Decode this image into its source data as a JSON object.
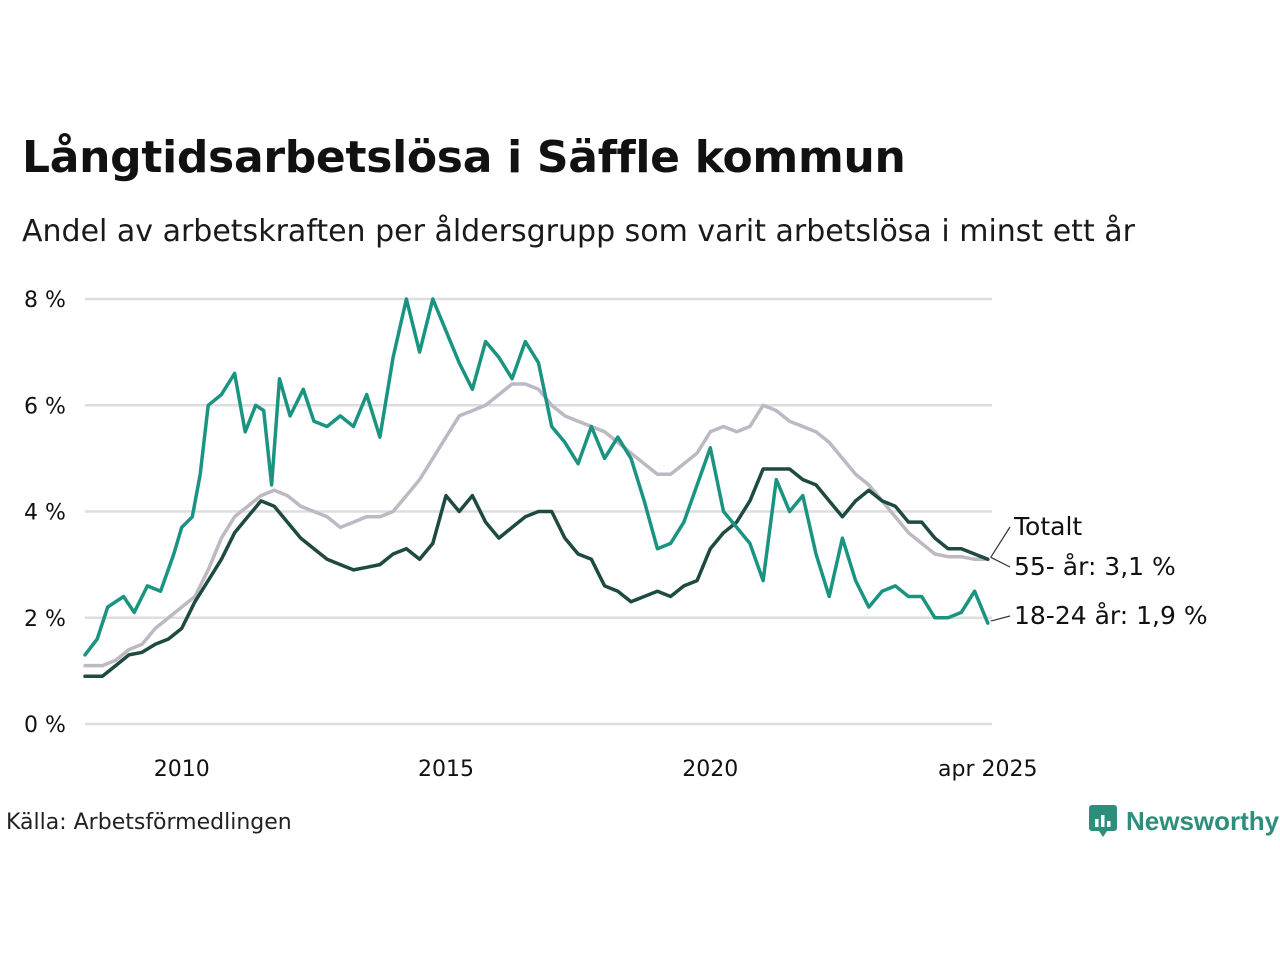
{
  "title": "Långtidsarbetslösa i Säffle kommun",
  "subtitle": "Andel av arbetskraften per åldersgrupp som varit arbetslösa i minst ett år",
  "source": "Källa: Arbetsförmedlingen",
  "brand": "Newsworthy",
  "colors": {
    "youth": "#1a9480",
    "senior": "#1f4a42",
    "total": "#bcb8c4",
    "grid": "#dddddd",
    "brand": "#2d8f7b"
  },
  "chart_data": {
    "type": "line",
    "ylim": [
      0,
      8
    ],
    "yticks": [
      0,
      2,
      4,
      6,
      8
    ],
    "ytick_labels": [
      "0 %",
      "2 %",
      "4 %",
      "6 %",
      "8 %"
    ],
    "xlim": [
      2008.17,
      2025.33
    ],
    "xticks": [
      2010,
      2015,
      2020,
      2025.25
    ],
    "xtick_labels": [
      "2010",
      "2015",
      "2020",
      "apr 2025"
    ],
    "grid": "horizontal",
    "series": [
      {
        "name": "Totalt",
        "key": "total",
        "label": "Totalt",
        "points": [
          [
            2008.17,
            1.1
          ],
          [
            2008.5,
            1.1
          ],
          [
            2008.75,
            1.2
          ],
          [
            2009,
            1.4
          ],
          [
            2009.25,
            1.5
          ],
          [
            2009.5,
            1.8
          ],
          [
            2009.75,
            2.0
          ],
          [
            2010,
            2.2
          ],
          [
            2010.25,
            2.4
          ],
          [
            2010.5,
            2.9
          ],
          [
            2010.75,
            3.5
          ],
          [
            2011,
            3.9
          ],
          [
            2011.25,
            4.1
          ],
          [
            2011.5,
            4.3
          ],
          [
            2011.75,
            4.4
          ],
          [
            2012,
            4.3
          ],
          [
            2012.25,
            4.1
          ],
          [
            2012.5,
            4.0
          ],
          [
            2012.75,
            3.9
          ],
          [
            2013,
            3.7
          ],
          [
            2013.25,
            3.8
          ],
          [
            2013.5,
            3.9
          ],
          [
            2013.75,
            3.9
          ],
          [
            2014,
            4.0
          ],
          [
            2014.25,
            4.3
          ],
          [
            2014.5,
            4.6
          ],
          [
            2014.75,
            5.0
          ],
          [
            2015,
            5.4
          ],
          [
            2015.25,
            5.8
          ],
          [
            2015.5,
            5.9
          ],
          [
            2015.75,
            6.0
          ],
          [
            2016,
            6.2
          ],
          [
            2016.25,
            6.4
          ],
          [
            2016.5,
            6.4
          ],
          [
            2016.75,
            6.3
          ],
          [
            2017,
            6.0
          ],
          [
            2017.25,
            5.8
          ],
          [
            2017.5,
            5.7
          ],
          [
            2017.75,
            5.6
          ],
          [
            2018,
            5.5
          ],
          [
            2018.25,
            5.3
          ],
          [
            2018.5,
            5.1
          ],
          [
            2018.75,
            4.9
          ],
          [
            2019,
            4.7
          ],
          [
            2019.25,
            4.7
          ],
          [
            2019.5,
            4.9
          ],
          [
            2019.75,
            5.1
          ],
          [
            2020,
            5.5
          ],
          [
            2020.25,
            5.6
          ],
          [
            2020.5,
            5.5
          ],
          [
            2020.75,
            5.6
          ],
          [
            2021,
            6.0
          ],
          [
            2021.25,
            5.9
          ],
          [
            2021.5,
            5.7
          ],
          [
            2021.75,
            5.6
          ],
          [
            2022,
            5.5
          ],
          [
            2022.25,
            5.3
          ],
          [
            2022.5,
            5.0
          ],
          [
            2022.75,
            4.7
          ],
          [
            2023,
            4.5
          ],
          [
            2023.25,
            4.2
          ],
          [
            2023.5,
            3.9
          ],
          [
            2023.75,
            3.6
          ],
          [
            2024,
            3.4
          ],
          [
            2024.25,
            3.2
          ],
          [
            2024.5,
            3.15
          ],
          [
            2024.75,
            3.15
          ],
          [
            2025,
            3.1
          ],
          [
            2025.25,
            3.1
          ]
        ]
      },
      {
        "name": "55- år",
        "key": "senior",
        "label": "55- år: 3,1 %",
        "points": [
          [
            2008.17,
            0.9
          ],
          [
            2008.5,
            0.9
          ],
          [
            2008.75,
            1.1
          ],
          [
            2009,
            1.3
          ],
          [
            2009.25,
            1.35
          ],
          [
            2009.5,
            1.5
          ],
          [
            2009.75,
            1.6
          ],
          [
            2010,
            1.8
          ],
          [
            2010.25,
            2.3
          ],
          [
            2010.5,
            2.7
          ],
          [
            2010.75,
            3.1
          ],
          [
            2011,
            3.6
          ],
          [
            2011.25,
            3.9
          ],
          [
            2011.5,
            4.2
          ],
          [
            2011.75,
            4.1
          ],
          [
            2012,
            3.8
          ],
          [
            2012.25,
            3.5
          ],
          [
            2012.5,
            3.3
          ],
          [
            2012.75,
            3.1
          ],
          [
            2013,
            3.0
          ],
          [
            2013.25,
            2.9
          ],
          [
            2013.5,
            2.95
          ],
          [
            2013.75,
            3.0
          ],
          [
            2014,
            3.2
          ],
          [
            2014.25,
            3.3
          ],
          [
            2014.5,
            3.1
          ],
          [
            2014.75,
            3.4
          ],
          [
            2015,
            4.3
          ],
          [
            2015.25,
            4.0
          ],
          [
            2015.5,
            4.3
          ],
          [
            2015.75,
            3.8
          ],
          [
            2016,
            3.5
          ],
          [
            2016.25,
            3.7
          ],
          [
            2016.5,
            3.9
          ],
          [
            2016.75,
            4.0
          ],
          [
            2017,
            4.0
          ],
          [
            2017.25,
            3.5
          ],
          [
            2017.5,
            3.2
          ],
          [
            2017.75,
            3.1
          ],
          [
            2018,
            2.6
          ],
          [
            2018.25,
            2.5
          ],
          [
            2018.5,
            2.3
          ],
          [
            2018.75,
            2.4
          ],
          [
            2019,
            2.5
          ],
          [
            2019.25,
            2.4
          ],
          [
            2019.5,
            2.6
          ],
          [
            2019.75,
            2.7
          ],
          [
            2020,
            3.3
          ],
          [
            2020.25,
            3.6
          ],
          [
            2020.5,
            3.8
          ],
          [
            2020.75,
            4.2
          ],
          [
            2021,
            4.8
          ],
          [
            2021.25,
            4.8
          ],
          [
            2021.5,
            4.8
          ],
          [
            2021.75,
            4.6
          ],
          [
            2022,
            4.5
          ],
          [
            2022.25,
            4.2
          ],
          [
            2022.5,
            3.9
          ],
          [
            2022.75,
            4.2
          ],
          [
            2023,
            4.4
          ],
          [
            2023.25,
            4.2
          ],
          [
            2023.5,
            4.1
          ],
          [
            2023.75,
            3.8
          ],
          [
            2024,
            3.8
          ],
          [
            2024.25,
            3.5
          ],
          [
            2024.5,
            3.3
          ],
          [
            2024.75,
            3.3
          ],
          [
            2025,
            3.2
          ],
          [
            2025.25,
            3.1
          ]
        ]
      },
      {
        "name": "18-24 år",
        "key": "youth",
        "label": "18-24 år: 1,9 %",
        "points": [
          [
            2008.17,
            1.3
          ],
          [
            2008.4,
            1.6
          ],
          [
            2008.6,
            2.2
          ],
          [
            2008.9,
            2.4
          ],
          [
            2009.1,
            2.1
          ],
          [
            2009.35,
            2.6
          ],
          [
            2009.6,
            2.5
          ],
          [
            2009.85,
            3.2
          ],
          [
            2010,
            3.7
          ],
          [
            2010.2,
            3.9
          ],
          [
            2010.35,
            4.7
          ],
          [
            2010.5,
            6.0
          ],
          [
            2010.75,
            6.2
          ],
          [
            2011,
            6.6
          ],
          [
            2011.2,
            5.5
          ],
          [
            2011.4,
            6.0
          ],
          [
            2011.55,
            5.9
          ],
          [
            2011.7,
            4.5
          ],
          [
            2011.85,
            6.5
          ],
          [
            2012.05,
            5.8
          ],
          [
            2012.3,
            6.3
          ],
          [
            2012.5,
            5.7
          ],
          [
            2012.75,
            5.6
          ],
          [
            2013,
            5.8
          ],
          [
            2013.25,
            5.6
          ],
          [
            2013.5,
            6.2
          ],
          [
            2013.75,
            5.4
          ],
          [
            2014,
            6.9
          ],
          [
            2014.25,
            8.0
          ],
          [
            2014.5,
            7.0
          ],
          [
            2014.75,
            8.0
          ],
          [
            2015,
            7.4
          ],
          [
            2015.25,
            6.8
          ],
          [
            2015.5,
            6.3
          ],
          [
            2015.75,
            7.2
          ],
          [
            2016,
            6.9
          ],
          [
            2016.25,
            6.5
          ],
          [
            2016.5,
            7.2
          ],
          [
            2016.75,
            6.8
          ],
          [
            2017,
            5.6
          ],
          [
            2017.25,
            5.3
          ],
          [
            2017.5,
            4.9
          ],
          [
            2017.75,
            5.6
          ],
          [
            2018,
            5.0
          ],
          [
            2018.25,
            5.4
          ],
          [
            2018.5,
            5.0
          ],
          [
            2018.75,
            4.2
          ],
          [
            2019,
            3.3
          ],
          [
            2019.25,
            3.4
          ],
          [
            2019.5,
            3.8
          ],
          [
            2019.75,
            4.5
          ],
          [
            2020,
            5.2
          ],
          [
            2020.25,
            4.0
          ],
          [
            2020.5,
            3.7
          ],
          [
            2020.75,
            3.4
          ],
          [
            2021,
            2.7
          ],
          [
            2021.25,
            4.6
          ],
          [
            2021.5,
            4.0
          ],
          [
            2021.75,
            4.3
          ],
          [
            2022,
            3.2
          ],
          [
            2022.25,
            2.4
          ],
          [
            2022.5,
            3.5
          ],
          [
            2022.75,
            2.7
          ],
          [
            2023,
            2.2
          ],
          [
            2023.25,
            2.5
          ],
          [
            2023.5,
            2.6
          ],
          [
            2023.75,
            2.4
          ],
          [
            2024,
            2.4
          ],
          [
            2024.25,
            2.0
          ],
          [
            2024.5,
            2.0
          ],
          [
            2024.75,
            2.1
          ],
          [
            2025,
            2.5
          ],
          [
            2025.25,
            1.9
          ]
        ]
      }
    ]
  }
}
